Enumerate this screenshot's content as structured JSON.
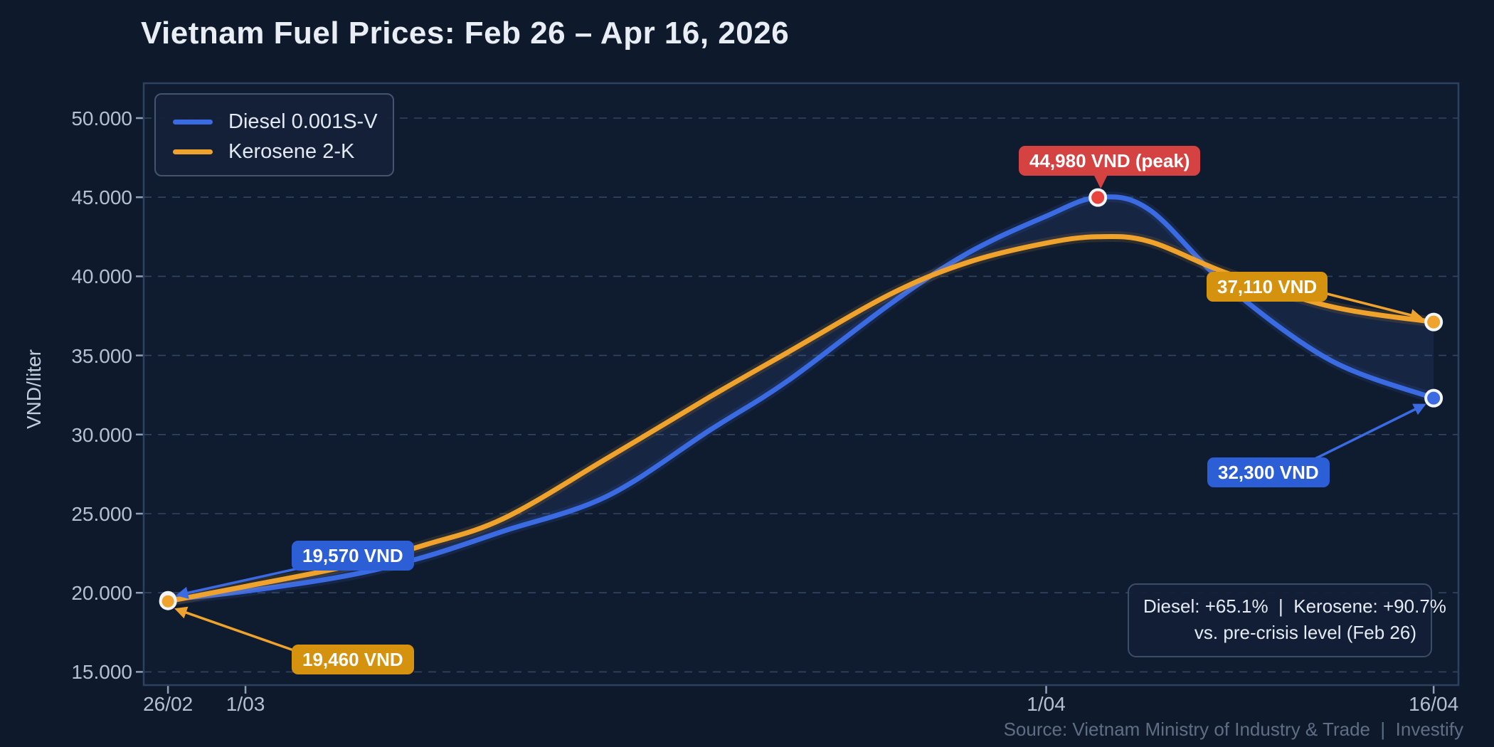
{
  "page": {
    "title": "Vietnam Fuel Prices: Feb 26 – Apr 16, 2026",
    "footer": "Source: Vietnam Ministry of Industry & Trade  |  Investify"
  },
  "colors": {
    "background": "#0e1a2b",
    "plot_bg": "#0f1c30",
    "plot_border": "#2e4060",
    "grid": "#32445e",
    "axis_tick": "#8fa0b8",
    "diesel": "#3b6be2",
    "kerosene": "#efa32d",
    "band_fill": "rgba(104,138,255,0.085)",
    "badge_blue": "#2c5ed6",
    "badge_amber": "#d4920e",
    "badge_red": "#d54242",
    "peak_dot": "#e8433c",
    "dot_ring": "#f2f6fa"
  },
  "legend": {
    "items": [
      {
        "label": "Diesel 0.001S-V",
        "color": "#3b6be2"
      },
      {
        "label": "Kerosene 2-K",
        "color": "#efa32d"
      }
    ]
  },
  "summary": {
    "line1": "Diesel: +65.1%  |  Kerosene: +90.7%",
    "line2": "vs. pre-crisis level (Feb 26)"
  },
  "chart_data": {
    "type": "line",
    "title": "Vietnam Fuel Prices: Feb 26 – Apr 16, 2026",
    "xlabel": "",
    "ylabel": "VND/liter",
    "x_unit": "days since Feb 26, 2026",
    "xlim": [
      -0.94,
      49.96
    ],
    "ylim": [
      14164,
      52203
    ],
    "grid": "horizontal-dashed",
    "legend_position": "upper-left",
    "x_ticks": [
      {
        "day": 0,
        "label": "26/02"
      },
      {
        "day": 3,
        "label": "1/03"
      },
      {
        "day": 34,
        "label": "1/04"
      },
      {
        "day": 49,
        "label": "16/04"
      }
    ],
    "y_ticks": [
      {
        "value": 15000,
        "label": "15.000"
      },
      {
        "value": 20000,
        "label": "20.000"
      },
      {
        "value": 25000,
        "label": "25.000"
      },
      {
        "value": 30000,
        "label": "30.000"
      },
      {
        "value": 35000,
        "label": "35.000"
      },
      {
        "value": 40000,
        "label": "40.000"
      },
      {
        "value": 45000,
        "label": "45.000"
      },
      {
        "value": 50000,
        "label": "50.000"
      }
    ],
    "series": [
      {
        "name": "Diesel 0.001S-V",
        "color": "#3b6be2",
        "days": [
          0,
          3,
          7,
          10,
          13,
          17,
          21,
          24,
          28,
          31,
          34,
          36,
          38,
          41,
          45,
          49
        ],
        "values": [
          19570,
          20100,
          21100,
          22300,
          23900,
          26100,
          30300,
          33400,
          38300,
          41500,
          43800,
          44980,
          44200,
          39400,
          34700,
          32300
        ]
      },
      {
        "name": "Kerosene 2-K",
        "color": "#efa32d",
        "days": [
          0,
          3,
          7,
          10,
          13,
          17,
          21,
          24,
          28,
          31,
          34,
          36,
          38,
          41,
          45,
          49
        ],
        "values": [
          19460,
          20400,
          21700,
          23050,
          24700,
          28500,
          32400,
          35200,
          38900,
          40900,
          42100,
          42500,
          42200,
          40200,
          38100,
          37110
        ]
      }
    ],
    "annotations": [
      {
        "id": "start-diesel",
        "label": "19,570 VND",
        "series": "Diesel 0.001S-V",
        "day": 0,
        "value": 19570
      },
      {
        "id": "start-kerosene",
        "label": "19,460 VND",
        "series": "Kerosene 2-K",
        "day": 0,
        "value": 19460
      },
      {
        "id": "peak-diesel",
        "label": "44,980 VND (peak)",
        "series": "Diesel 0.001S-V",
        "day": 36,
        "value": 44980
      },
      {
        "id": "end-kerosene",
        "label": "37,110 VND",
        "series": "Kerosene 2-K",
        "day": 49,
        "value": 37110
      },
      {
        "id": "end-diesel",
        "label": "32,300 VND",
        "series": "Diesel 0.001S-V",
        "day": 49,
        "value": 32300
      }
    ]
  }
}
